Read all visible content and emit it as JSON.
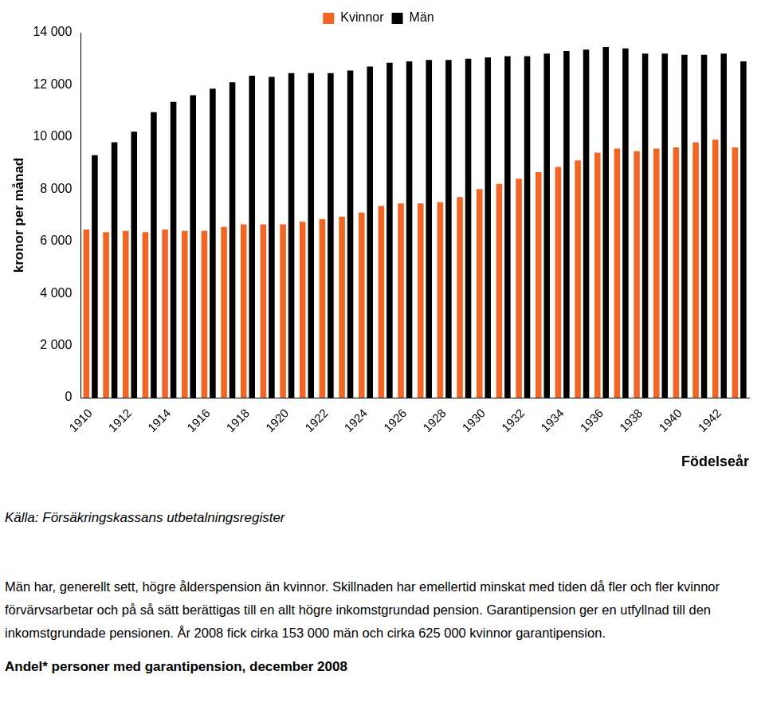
{
  "chart_data": {
    "type": "bar",
    "categories": [
      "1910",
      null,
      "1912",
      null,
      "1914",
      null,
      "1916",
      null,
      "1918",
      null,
      "1920",
      null,
      "1922",
      null,
      "1924",
      null,
      "1926",
      null,
      "1928",
      null,
      "1930",
      null,
      "1932",
      null,
      "1934",
      null,
      "1936",
      null,
      "1938",
      null,
      "1940",
      null,
      "1942",
      null
    ],
    "series": [
      {
        "name": "Kvinnor",
        "color": "#f26522",
        "values": [
          6450,
          6350,
          6400,
          6350,
          6450,
          6400,
          6400,
          6550,
          6650,
          6650,
          6650,
          6750,
          6850,
          6950,
          7100,
          7350,
          7450,
          7450,
          7500,
          7700,
          8000,
          8200,
          8400,
          8650,
          8850,
          9100,
          9400,
          9550,
          9450,
          9550,
          9600,
          9800,
          9900,
          9600
        ]
      },
      {
        "name": "Män",
        "color": "#000000",
        "values": [
          9300,
          9800,
          10200,
          10950,
          11350,
          11600,
          11850,
          12100,
          12350,
          12300,
          12450,
          12450,
          12450,
          12550,
          12700,
          12850,
          12900,
          12950,
          12950,
          13000,
          13050,
          13100,
          13100,
          13200,
          13300,
          13350,
          13450,
          13400,
          13200,
          13200,
          13150,
          13150,
          13200,
          12900
        ]
      }
    ],
    "y_label": "kronor per månad",
    "x_label": "Födelseår",
    "ylim": [
      0,
      14000
    ],
    "yticks": [
      0,
      {
        "value": 2000,
        "label": "2 000"
      },
      {
        "value": 4000,
        "label": "4 000"
      },
      {
        "value": 6000,
        "label": "6 000"
      },
      {
        "value": 8000,
        "label": "8 000"
      },
      {
        "value": 10000,
        "label": "10 000"
      },
      {
        "value": 12000,
        "label": "12 000"
      },
      {
        "value": 14000,
        "label": "14 000"
      }
    ],
    "grid": false,
    "legend": "top"
  },
  "source": "Källa: Försäkringskassans utbetalningsregister",
  "paragraph": "Män har, generellt sett, högre ålderspension än kvinnor. Skillnaden har emellertid minskat med tiden då fler och fler kvinnor förvärvsarbetar och på så sätt berättigas till en allt högre inkomstgrundad pension. Garantipension ger en utfyllnad till den inkomstgrundade pensionen. År 2008 fick cirka 153 000 män och cirka 625 000 kvinnor garantipension.",
  "heading": "Andel* personer med garantipension, december 2008"
}
